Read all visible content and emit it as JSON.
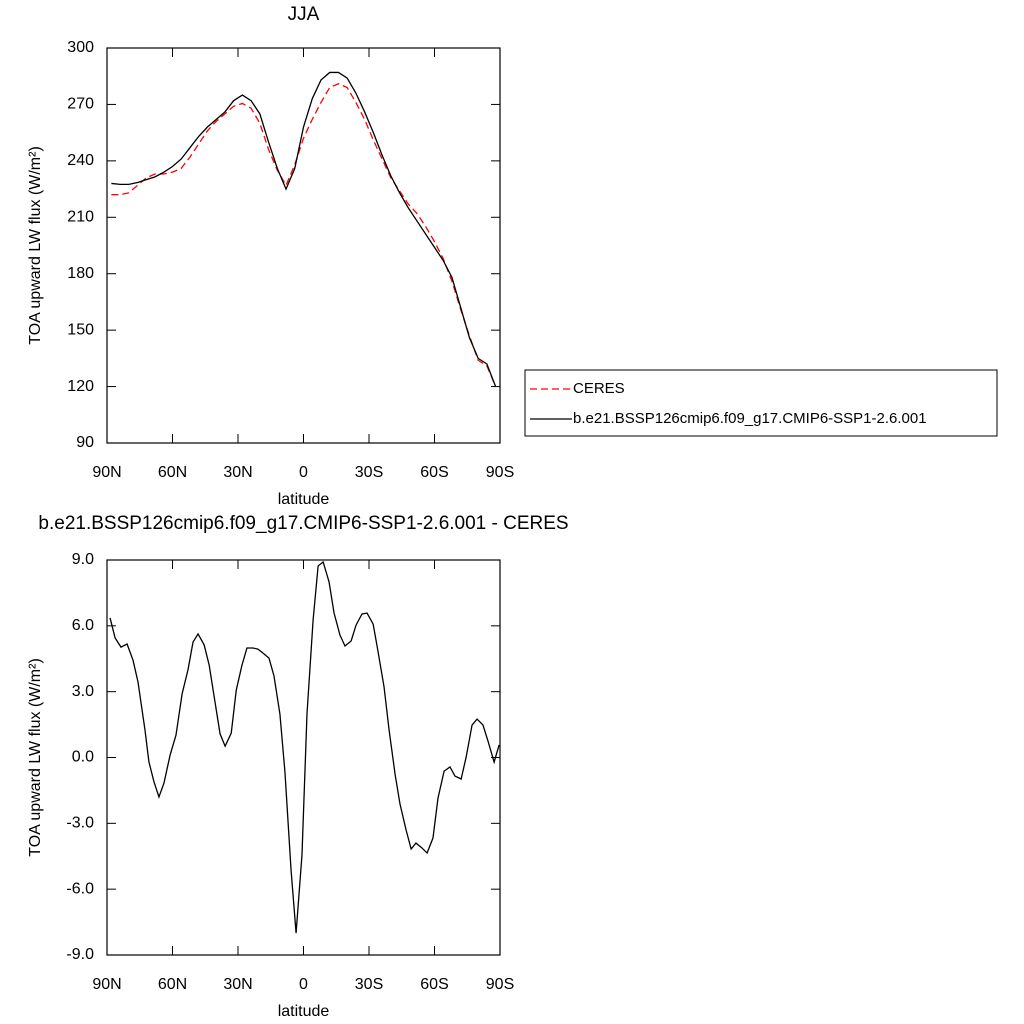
{
  "chart_data": [
    {
      "type": "line",
      "title": "JJA",
      "x_label": "latitude",
      "y_label": "TOA upward LW flux (W/m²)",
      "x": [
        88,
        84,
        80,
        76,
        72,
        68,
        64,
        60,
        56,
        52,
        48,
        44,
        40,
        36,
        32,
        28,
        24,
        20,
        16,
        12,
        8,
        4,
        0,
        -4,
        -8,
        -12,
        -16,
        -20,
        -24,
        -28,
        -32,
        -36,
        -40,
        -44,
        -48,
        -52,
        -56,
        -60,
        -64,
        -68,
        -72,
        -76,
        -80,
        -84,
        -88
      ],
      "series": [
        {
          "name": "CERES",
          "color": "#ff0000",
          "dash": true,
          "values": [
            222,
            222,
            223,
            227,
            231,
            233,
            233,
            234,
            236,
            242,
            249,
            256,
            261,
            265,
            269,
            270.5,
            268,
            260,
            246,
            235,
            227,
            238,
            252,
            262,
            271,
            279,
            281,
            279,
            271,
            262,
            251,
            241,
            231,
            224,
            217,
            212,
            205,
            197,
            188,
            176,
            161,
            147,
            134,
            131,
            120
          ]
        },
        {
          "name": "b.e21.BSSP126cmip6.f09_g17.CMIP6-SSP1-2.6.001",
          "color": "#000000",
          "dash": false,
          "values": [
            228,
            227.5,
            227.5,
            228.5,
            230,
            231.5,
            234,
            237,
            241,
            247,
            253,
            258,
            262,
            266,
            272,
            275,
            272,
            265,
            250,
            236,
            225,
            236,
            258,
            273,
            283,
            287,
            287,
            284,
            276,
            266,
            255,
            243,
            232,
            223,
            215,
            208,
            201,
            194,
            187,
            178,
            162,
            146,
            135,
            132,
            120
          ]
        }
      ],
      "xlim": [
        90,
        -90
      ],
      "xticks": [
        {
          "value": 90,
          "label": "90N"
        },
        {
          "value": 60,
          "label": "60N"
        },
        {
          "value": 30,
          "label": "30N"
        },
        0,
        {
          "value": -30,
          "label": "30S"
        },
        {
          "value": -60,
          "label": "60S"
        },
        {
          "value": -90,
          "label": "90S"
        }
      ],
      "ylim": [
        90,
        300
      ],
      "yticks": [
        90,
        120,
        150,
        180,
        210,
        240,
        270,
        300
      ],
      "legend": "right"
    },
    {
      "type": "line",
      "title": "b.e21.BSSP126cmip6.f09_g17.CMIP6-SSP1-2.6.001 - CERES",
      "x_label": "latitude",
      "y_label": "TOA upward LW flux (W/m²)",
      "x": [
        88.6,
        86.3,
        83.6,
        80.8,
        78.1,
        75.8,
        72.6,
        70.8,
        68.5,
        66.2,
        63.9,
        61.1,
        58.4,
        55.6,
        52.9,
        50.6,
        48.3,
        45.5,
        43.2,
        40.9,
        38.2,
        35.9,
        33.1,
        30.8,
        28.2,
        25.9,
        23.2,
        20.9,
        18.6,
        15.8,
        13.5,
        10.8,
        8.5,
        5.7,
        3.4,
        0.7,
        -1.6,
        -4.4,
        -6.7,
        -9.0,
        -11.7,
        -14.0,
        -16.7,
        -19.0,
        -21.8,
        -24.1,
        -26.8,
        -29.1,
        -31.9,
        -34.1,
        -36.9,
        -39.2,
        -42.0,
        -44.2,
        -47.0,
        -49.3,
        -51.5,
        -54.0,
        -56.6,
        -59.3,
        -61.6,
        -64.4,
        -67.1,
        -69.4,
        -72.2,
        -74.5,
        -77.2,
        -79.5,
        -82.2,
        -84.5,
        -87.3,
        -89.6
      ],
      "series": [
        {
          "name": "b.e21.BSSP126cmip6.f09_g17.CMIP6-SSP1-2.6.001 - CERES",
          "color": "#000000",
          "dash": false,
          "values": [
            6.36,
            5.45,
            5.03,
            5.17,
            4.44,
            3.44,
            1.25,
            -0.2,
            -1.1,
            -1.8,
            -1.16,
            0.11,
            1.02,
            2.9,
            4.0,
            5.26,
            5.63,
            5.13,
            4.21,
            2.76,
            1.07,
            0.52,
            1.11,
            3.07,
            4.2,
            4.99,
            4.99,
            4.94,
            4.76,
            4.53,
            3.71,
            1.98,
            -0.66,
            -5.13,
            -8.0,
            -4.45,
            1.98,
            6.27,
            8.73,
            8.91,
            8.0,
            6.58,
            5.58,
            5.08,
            5.31,
            6.04,
            6.54,
            6.58,
            6.08,
            4.85,
            3.21,
            1.25,
            -0.8,
            -2.12,
            -3.31,
            -4.17,
            -3.9,
            -4.1,
            -4.35,
            -3.67,
            -1.85,
            -0.62,
            -0.43,
            -0.85,
            -0.98,
            0.02,
            1.48,
            1.75,
            1.48,
            0.75,
            -0.21,
            0.57
          ]
        }
      ],
      "xlim": [
        90,
        -90
      ],
      "xticks": [
        {
          "value": 90,
          "label": "90N"
        },
        {
          "value": 60,
          "label": "60N"
        },
        {
          "value": 30,
          "label": "30N"
        },
        0,
        {
          "value": -30,
          "label": "30S"
        },
        {
          "value": -60,
          "label": "60S"
        },
        {
          "value": -90,
          "label": "90S"
        }
      ],
      "ylim": [
        -9,
        9
      ],
      "yticks": [
        {
          "value": -9,
          "label": "-9.0"
        },
        {
          "value": -6,
          "label": "-6.0"
        },
        {
          "value": -3,
          "label": "-3.0"
        },
        {
          "value": 0,
          "label": "0.0"
        },
        {
          "value": 3,
          "label": "3.0"
        },
        {
          "value": 6,
          "label": "6.0"
        },
        {
          "value": 9,
          "label": "9.0"
        }
      ]
    }
  ]
}
